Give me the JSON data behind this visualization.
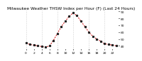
{
  "title": "Milwaukee Weather THSW Index per Hour (F) (Last 24 Hours)",
  "hours": [
    0,
    1,
    2,
    3,
    4,
    5,
    6,
    7,
    8,
    9,
    10,
    11,
    12,
    13,
    14,
    15,
    16,
    17,
    18,
    19,
    20,
    21,
    22,
    23
  ],
  "values": [
    44,
    42,
    41,
    40,
    39,
    38,
    40,
    48,
    58,
    68,
    76,
    83,
    88,
    84,
    76,
    68,
    60,
    54,
    50,
    47,
    43,
    42,
    41,
    40
  ],
  "ylim_min": 35,
  "ylim_max": 92,
  "yticks": [
    40,
    50,
    60,
    70,
    80,
    90
  ],
  "ytick_labels": [
    "40",
    "50",
    "60",
    "70",
    "80",
    "90"
  ],
  "bg_color": "#ffffff",
  "line_color": "#cc0000",
  "marker_color": "#222222",
  "grid_color": "#aaaaaa",
  "title_color": "#000000",
  "title_fontsize": 4.2,
  "tick_fontsize": 3.2,
  "xtick_every": 2,
  "grid_every": 4
}
